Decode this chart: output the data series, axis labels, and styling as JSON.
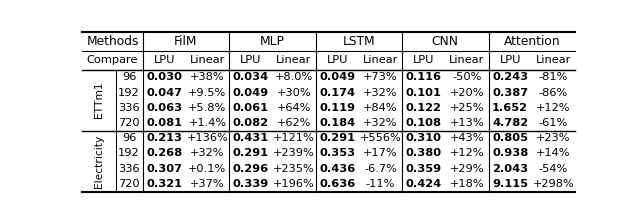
{
  "title": "",
  "methods": [
    "FilM",
    "MLP",
    "LSTM",
    "CNN",
    "Attention"
  ],
  "datasets": [
    "ETTm1",
    "Electricity"
  ],
  "horizons": [
    96,
    192,
    336,
    720
  ],
  "data": {
    "ETTm1": {
      "96": [
        "0.030",
        "+38%",
        "0.034",
        "+8.0%",
        "0.049",
        "+73%",
        "0.116",
        "-50%",
        "0.243",
        "-81%"
      ],
      "192": [
        "0.047",
        "+9.5%",
        "0.049",
        "+30%",
        "0.174",
        "+32%",
        "0.101",
        "+20%",
        "0.387",
        "-86%"
      ],
      "336": [
        "0.063",
        "+5.8%",
        "0.061",
        "+64%",
        "0.119",
        "+84%",
        "0.122",
        "+25%",
        "1.652",
        "+12%"
      ],
      "720": [
        "0.081",
        "+1.4%",
        "0.082",
        "+62%",
        "0.184",
        "+32%",
        "0.108",
        "+13%",
        "4.782",
        "-61%"
      ]
    },
    "Electricity": {
      "96": [
        "0.213",
        "+136%",
        "0.431",
        "+121%",
        "0.291",
        "+556%",
        "0.310",
        "+43%",
        "0.805",
        "+23%"
      ],
      "192": [
        "0.268",
        "+32%",
        "0.291",
        "+239%",
        "0.353",
        "+17%",
        "0.380",
        "+12%",
        "0.938",
        "+14%"
      ],
      "336": [
        "0.307",
        "+0.1%",
        "0.296",
        "+235%",
        "0.436",
        "-6.7%",
        "0.359",
        "+29%",
        "2.043",
        "-54%"
      ],
      "720": [
        "0.321",
        "+37%",
        "0.339",
        "+196%",
        "0.636",
        "-11%",
        "0.424",
        "+18%",
        "9.115",
        "+298%"
      ]
    }
  },
  "background_color": "#ffffff",
  "font_size": 8.2,
  "header_font_size": 8.8
}
